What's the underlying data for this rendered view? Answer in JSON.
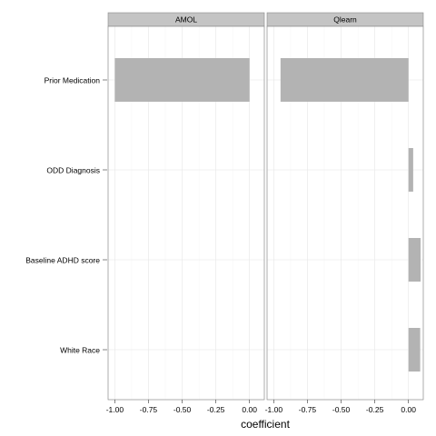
{
  "chart_data": {
    "type": "bar",
    "orientation": "horizontal",
    "facet": true,
    "xlabel": "coefficient",
    "categories": [
      "Prior  Medication",
      "ODD Diagnosis",
      "Baseline ADHD score",
      "White Race"
    ],
    "xticks": [
      -1.0,
      -0.75,
      -0.5,
      -0.25,
      0.0
    ],
    "xtick_labels": [
      "-1.00",
      "-0.75",
      "-0.50",
      "-0.25",
      "0.00"
    ],
    "xlim": [
      -1.05,
      0.11
    ],
    "grid": true,
    "bar_color": "#b3b3b3",
    "strip_color": "#c4c4c4",
    "panels": [
      {
        "strip": "AMOL",
        "values": [
          -1.0,
          0.0,
          0.0,
          0.0
        ]
      },
      {
        "strip": "Qlearn",
        "values": [
          -0.95,
          0.035,
          0.09,
          0.087
        ]
      }
    ]
  }
}
